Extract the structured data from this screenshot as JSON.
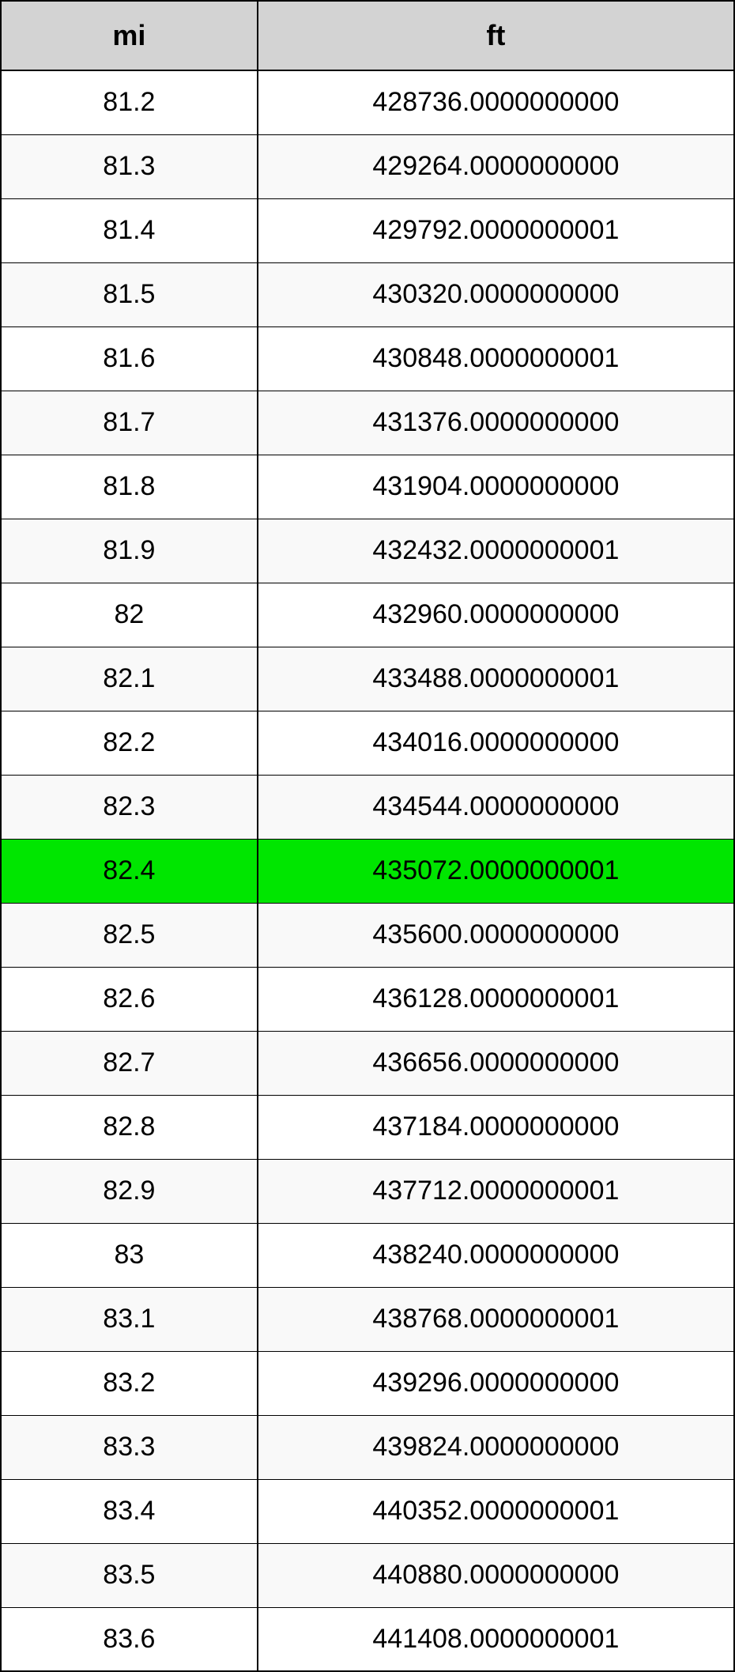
{
  "table": {
    "columns": [
      {
        "key": "mi",
        "label": "mi"
      },
      {
        "key": "ft",
        "label": "ft"
      }
    ],
    "rows": [
      {
        "mi": "81.2",
        "ft": "428736.0000000000",
        "highlighted": false
      },
      {
        "mi": "81.3",
        "ft": "429264.0000000000",
        "highlighted": false
      },
      {
        "mi": "81.4",
        "ft": "429792.0000000001",
        "highlighted": false
      },
      {
        "mi": "81.5",
        "ft": "430320.0000000000",
        "highlighted": false
      },
      {
        "mi": "81.6",
        "ft": "430848.0000000001",
        "highlighted": false
      },
      {
        "mi": "81.7",
        "ft": "431376.0000000000",
        "highlighted": false
      },
      {
        "mi": "81.8",
        "ft": "431904.0000000000",
        "highlighted": false
      },
      {
        "mi": "81.9",
        "ft": "432432.0000000001",
        "highlighted": false
      },
      {
        "mi": "82",
        "ft": "432960.0000000000",
        "highlighted": false
      },
      {
        "mi": "82.1",
        "ft": "433488.0000000001",
        "highlighted": false
      },
      {
        "mi": "82.2",
        "ft": "434016.0000000000",
        "highlighted": false
      },
      {
        "mi": "82.3",
        "ft": "434544.0000000000",
        "highlighted": false
      },
      {
        "mi": "82.4",
        "ft": "435072.0000000001",
        "highlighted": true
      },
      {
        "mi": "82.5",
        "ft": "435600.0000000000",
        "highlighted": false
      },
      {
        "mi": "82.6",
        "ft": "436128.0000000001",
        "highlighted": false
      },
      {
        "mi": "82.7",
        "ft": "436656.0000000000",
        "highlighted": false
      },
      {
        "mi": "82.8",
        "ft": "437184.0000000000",
        "highlighted": false
      },
      {
        "mi": "82.9",
        "ft": "437712.0000000001",
        "highlighted": false
      },
      {
        "mi": "83",
        "ft": "438240.0000000000",
        "highlighted": false
      },
      {
        "mi": "83.1",
        "ft": "438768.0000000001",
        "highlighted": false
      },
      {
        "mi": "83.2",
        "ft": "439296.0000000000",
        "highlighted": false
      },
      {
        "mi": "83.3",
        "ft": "439824.0000000000",
        "highlighted": false
      },
      {
        "mi": "83.4",
        "ft": "440352.0000000001",
        "highlighted": false
      },
      {
        "mi": "83.5",
        "ft": "440880.0000000000",
        "highlighted": false
      },
      {
        "mi": "83.6",
        "ft": "441408.0000000001",
        "highlighted": false
      }
    ],
    "header_background_color": "#d3d3d3",
    "row_even_color": "#ffffff",
    "row_odd_color": "#f9f9f9",
    "highlight_color": "#00e600",
    "border_color": "#000000",
    "header_fontsize": 36,
    "cell_fontsize": 34
  }
}
